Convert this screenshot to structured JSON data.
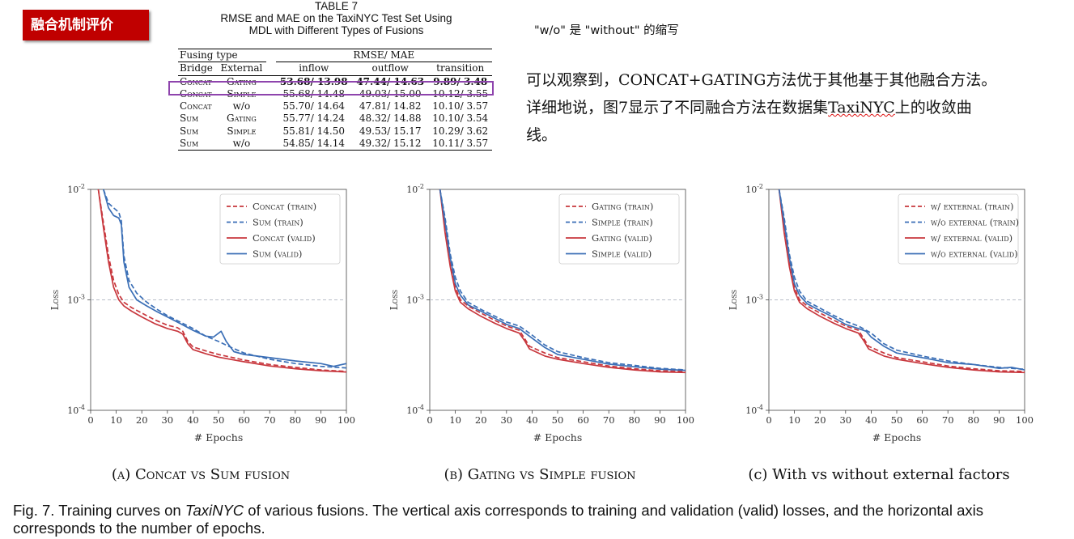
{
  "badge": "融合机制评价",
  "table": {
    "number": "TABLE 7",
    "title_line1": "RMSE and MAE on the TaxiNYC Test Set Using",
    "title_line2": "MDL with Different Types of Fusions",
    "hdr_fusing_type": "Fusing type",
    "hdr_metric": "RMSE/ MAE",
    "hdr_bridge": "Bridge",
    "hdr_external": "External",
    "hdr_inflow": "inflow",
    "hdr_outflow": "outflow",
    "hdr_transition": "transition",
    "rows": [
      {
        "bridge": "Concat",
        "external": "Gating",
        "inflow": "53.68/ 13.98",
        "outflow": "47.44/ 14.63",
        "transition": "9.89/ 3.48"
      },
      {
        "bridge": "Concat",
        "external": "Simple",
        "inflow": "55.68/ 14.48",
        "outflow": "49.03/ 15.00",
        "transition": "10.12/ 3.55"
      },
      {
        "bridge": "Concat",
        "external": "w/o",
        "inflow": "55.70/ 14.64",
        "outflow": "47.81/ 14.82",
        "transition": "10.10/ 3.57"
      },
      {
        "bridge": "Sum",
        "external": "Gating",
        "inflow": "55.77/ 14.24",
        "outflow": "48.32/ 14.88",
        "transition": "10.10/ 3.54"
      },
      {
        "bridge": "Sum",
        "external": "Simple",
        "inflow": "55.81/ 14.50",
        "outflow": "49.53/ 15.17",
        "transition": "10.29/ 3.62"
      },
      {
        "bridge": "Sum",
        "external": "w/o",
        "inflow": "54.85/ 14.14",
        "outflow": "49.32/ 15.12",
        "transition": "10.11/ 3.57"
      }
    ]
  },
  "note": "\"w/o\" 是 \"without\" 的缩写",
  "paragraph": {
    "line1": "可以观察到，CONCAT+GATING方法优于其他基于其他融合方法。",
    "line2_a": "详细地说，图7显示了不同融合方法在数据集",
    "line2_u": "TaxiNYC",
    "line2_b": "上的收敛曲",
    "line3": "线。"
  },
  "subcaptions": [
    "(a) Concat vs Sum fusion",
    "(b) Gating vs Simple fusion",
    "(c) With vs without external factors"
  ],
  "figure_caption": {
    "prefix": "Fig. 7. Training curves on ",
    "italic": "TaxiNYC",
    "suffix": " of various fusions. The vertical axis corresponds to training and validation (valid) losses, and the horizontal axis corresponds to the number of epochs."
  },
  "colors": {
    "red": "#c8373d",
    "blue": "#3b6fb6",
    "highlight": "#8e44ad",
    "badge": "#c00000"
  },
  "chart_data": [
    {
      "type": "line",
      "xlabel": "# Epochs",
      "ylabel": "Loss",
      "yscale": "log",
      "xlim": [
        0,
        100
      ],
      "ylim": [
        0.0001,
        0.01
      ],
      "x_ticks": [
        0,
        10,
        20,
        30,
        40,
        50,
        60,
        70,
        80,
        90,
        100
      ],
      "y_ticks": [
        "10^-4",
        "10^-3",
        "10^-2"
      ],
      "hline": 0.001,
      "legend_position": "top-right",
      "series": [
        {
          "name": "Concat (train)",
          "color": "#c8373d",
          "style": "dashed",
          "x": [
            3,
            5,
            7,
            9,
            11,
            13,
            16,
            20,
            25,
            30,
            34,
            36,
            38,
            40,
            45,
            50,
            60,
            70,
            80,
            90,
            100
          ],
          "y": [
            0.01,
            0.005,
            0.0025,
            0.0015,
            0.00112,
            0.00095,
            0.00085,
            0.00076,
            0.00066,
            0.00059,
            0.00056,
            0.00052,
            0.00042,
            0.000375,
            0.000345,
            0.00032,
            0.000285,
            0.00026,
            0.000245,
            0.000232,
            0.000225
          ]
        },
        {
          "name": "Sum (train)",
          "color": "#3b6fb6",
          "style": "dashed",
          "x": [
            5,
            7,
            9,
            11,
            12,
            13,
            15,
            18,
            22,
            26,
            30,
            35,
            40,
            45,
            50,
            55,
            60,
            70,
            80,
            90,
            100
          ],
          "y": [
            0.01,
            0.0075,
            0.0068,
            0.0062,
            0.0052,
            0.0025,
            0.0015,
            0.00115,
            0.00095,
            0.00082,
            0.00072,
            0.00063,
            0.00055,
            0.00047,
            0.00042,
            0.00037,
            0.00033,
            0.00029,
            0.000265,
            0.00025,
            0.000242
          ]
        },
        {
          "name": "Concat (valid)",
          "color": "#c8373d",
          "style": "solid",
          "x": [
            3,
            5,
            7,
            9,
            11,
            13,
            16,
            20,
            25,
            30,
            34,
            36,
            38,
            40,
            45,
            50,
            60,
            70,
            80,
            90,
            100
          ],
          "y": [
            0.01,
            0.0045,
            0.0022,
            0.0013,
            0.001,
            0.00088,
            0.00079,
            0.0007,
            0.00061,
            0.00055,
            0.00052,
            0.00049,
            0.0004,
            0.000355,
            0.000325,
            0.000303,
            0.000275,
            0.000252,
            0.000238,
            0.000228,
            0.000222
          ]
        },
        {
          "name": "Sum (valid)",
          "color": "#3b6fb6",
          "style": "solid",
          "x": [
            5,
            7,
            9,
            11,
            12,
            13,
            15,
            18,
            22,
            26,
            30,
            35,
            40,
            45,
            48,
            51,
            53,
            56,
            60,
            70,
            80,
            90,
            95,
            100
          ],
          "y": [
            0.01,
            0.0068,
            0.0058,
            0.0055,
            0.0048,
            0.0022,
            0.0013,
            0.001,
            0.00088,
            0.00078,
            0.0007,
            0.00061,
            0.00053,
            0.00047,
            0.00046,
            0.00052,
            0.00042,
            0.00034,
            0.00032,
            0.0003,
            0.00028,
            0.000265,
            0.00025,
            0.000265
          ]
        }
      ]
    },
    {
      "type": "line",
      "xlabel": "# Epochs",
      "ylabel": "Loss",
      "yscale": "log",
      "xlim": [
        0,
        100
      ],
      "ylim": [
        0.0001,
        0.01
      ],
      "x_ticks": [
        0,
        10,
        20,
        30,
        40,
        50,
        60,
        70,
        80,
        90,
        100
      ],
      "y_ticks": [
        "10^-4",
        "10^-3",
        "10^-2"
      ],
      "hline": 0.001,
      "legend_position": "top-right",
      "series": [
        {
          "name": "Gating (train)",
          "color": "#c8373d",
          "style": "dashed",
          "x": [
            4,
            6,
            8,
            10,
            12,
            15,
            20,
            25,
            30,
            35,
            37,
            39,
            45,
            50,
            60,
            70,
            80,
            90,
            100
          ],
          "y": [
            0.01,
            0.0045,
            0.0022,
            0.0013,
            0.001,
            0.00088,
            0.00076,
            0.00066,
            0.00058,
            0.00053,
            0.00045,
            0.00038,
            0.00033,
            0.0003,
            0.000275,
            0.000252,
            0.000238,
            0.000228,
            0.000225
          ]
        },
        {
          "name": "Simple (train)",
          "color": "#3b6fb6",
          "style": "dashed",
          "x": [
            4,
            6,
            8,
            10,
            12,
            15,
            20,
            25,
            30,
            35,
            40,
            45,
            50,
            60,
            70,
            80,
            90,
            100
          ],
          "y": [
            0.01,
            0.0055,
            0.0026,
            0.0016,
            0.0012,
            0.00095,
            0.00082,
            0.00072,
            0.00063,
            0.00058,
            0.00048,
            0.00039,
            0.00034,
            0.0003,
            0.00027,
            0.000255,
            0.00024,
            0.000232
          ]
        },
        {
          "name": "Gating (valid)",
          "color": "#c8373d",
          "style": "solid",
          "x": [
            4,
            6,
            8,
            10,
            12,
            15,
            20,
            25,
            30,
            35,
            37,
            39,
            45,
            50,
            60,
            70,
            80,
            90,
            100
          ],
          "y": [
            0.01,
            0.004,
            0.002,
            0.0012,
            0.00095,
            0.00083,
            0.00071,
            0.00062,
            0.00055,
            0.0005,
            0.00043,
            0.00036,
            0.00031,
            0.00029,
            0.000265,
            0.000245,
            0.000232,
            0.000223,
            0.00022
          ]
        },
        {
          "name": "Simple (valid)",
          "color": "#3b6fb6",
          "style": "solid",
          "x": [
            4,
            6,
            8,
            10,
            12,
            15,
            20,
            25,
            30,
            35,
            40,
            45,
            50,
            60,
            70,
            80,
            90,
            100
          ],
          "y": [
            0.01,
            0.005,
            0.0024,
            0.0014,
            0.0011,
            0.0009,
            0.00079,
            0.00069,
            0.0006,
            0.00055,
            0.00045,
            0.00037,
            0.00032,
            0.00029,
            0.000262,
            0.000248,
            0.000236,
            0.00023
          ]
        }
      ]
    },
    {
      "type": "line",
      "xlabel": "# Epochs",
      "ylabel": "Loss",
      "yscale": "log",
      "xlim": [
        0,
        100
      ],
      "ylim": [
        0.0001,
        0.01
      ],
      "x_ticks": [
        0,
        10,
        20,
        30,
        40,
        50,
        60,
        70,
        80,
        90,
        100
      ],
      "y_ticks": [
        "10^-4",
        "10^-3",
        "10^-2"
      ],
      "hline": 0.001,
      "legend_position": "top-right",
      "series": [
        {
          "name": "w/ external (train)",
          "color": "#c8373d",
          "style": "dashed",
          "x": [
            4,
            6,
            8,
            10,
            12,
            15,
            20,
            25,
            30,
            35,
            37,
            39,
            45,
            50,
            60,
            70,
            80,
            90,
            100
          ],
          "y": [
            0.01,
            0.0045,
            0.0022,
            0.0013,
            0.001,
            0.00088,
            0.00076,
            0.00066,
            0.00058,
            0.00053,
            0.00045,
            0.00038,
            0.00033,
            0.0003,
            0.000275,
            0.000252,
            0.000238,
            0.000228,
            0.000225
          ]
        },
        {
          "name": "w/o external (train)",
          "color": "#3b6fb6",
          "style": "dashed",
          "x": [
            4,
            6,
            8,
            10,
            12,
            15,
            20,
            25,
            30,
            35,
            40,
            45,
            50,
            60,
            70,
            80,
            90,
            100
          ],
          "y": [
            0.01,
            0.0055,
            0.0026,
            0.0016,
            0.0012,
            0.00097,
            0.00084,
            0.00073,
            0.00064,
            0.00058,
            0.0005,
            0.0004,
            0.00035,
            0.00031,
            0.00028,
            0.00026,
            0.000245,
            0.000235
          ]
        },
        {
          "name": "w/ external (valid)",
          "color": "#c8373d",
          "style": "solid",
          "x": [
            4,
            6,
            8,
            10,
            12,
            15,
            20,
            25,
            30,
            35,
            37,
            39,
            45,
            50,
            60,
            70,
            80,
            90,
            100
          ],
          "y": [
            0.01,
            0.004,
            0.002,
            0.0012,
            0.00095,
            0.00083,
            0.00071,
            0.00062,
            0.00055,
            0.0005,
            0.00043,
            0.00036,
            0.00031,
            0.00029,
            0.000265,
            0.000245,
            0.000232,
            0.000223,
            0.00022
          ]
        },
        {
          "name": "w/o external (valid)",
          "color": "#3b6fb6",
          "style": "solid",
          "x": [
            4,
            6,
            8,
            10,
            12,
            15,
            20,
            25,
            30,
            35,
            38,
            40,
            45,
            50,
            60,
            70,
            80,
            85,
            90,
            95,
            100
          ],
          "y": [
            0.01,
            0.005,
            0.0024,
            0.0014,
            0.0011,
            0.00092,
            0.0008,
            0.0007,
            0.0006,
            0.00055,
            0.00052,
            0.00046,
            0.00038,
            0.00033,
            0.0003,
            0.00027,
            0.00026,
            0.00025,
            0.00024,
            0.000245,
            0.000232
          ]
        }
      ]
    }
  ]
}
